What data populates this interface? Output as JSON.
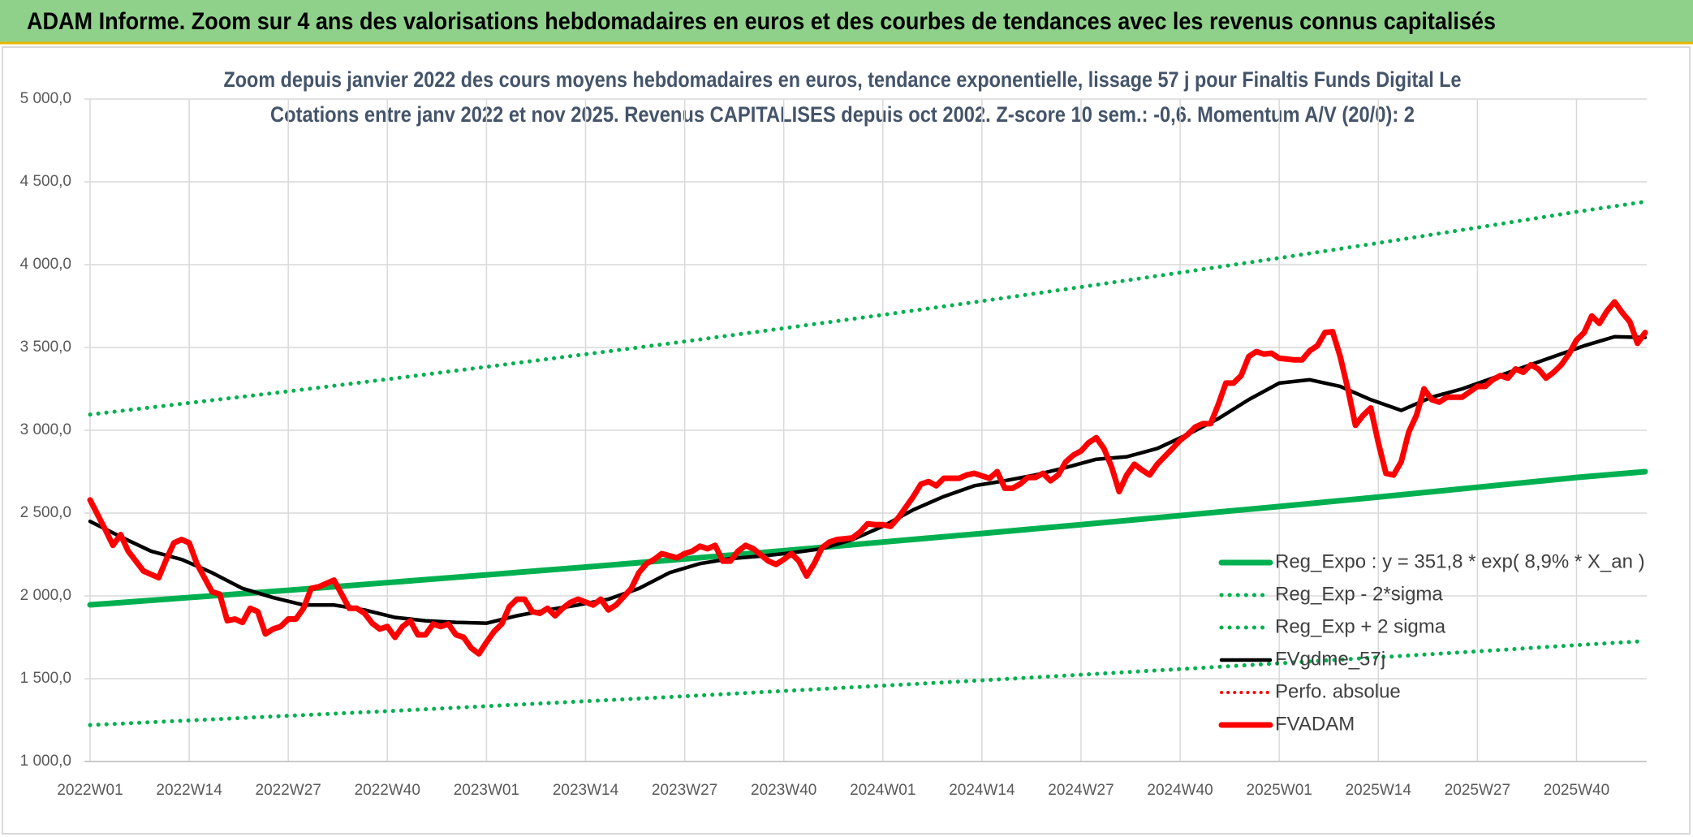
{
  "header": "ADAM Informe. Zoom sur 4 ans des valorisations hebdomadaires en euros et des courbes de tendances avec les revenus connus capitalisés",
  "chart_data": {
    "type": "line",
    "title": "Zoom depuis janvier 2022 des cours moyens hebdomadaires en euros, tendance exponentielle, lissage 57 j pour Finaltis Funds Digital Le",
    "subtitle": "Cotations entre janv 2022 et nov 2025. Revenus CAPITALISES depuis oct 2002. Z-score 10 sem.: -0,6. Momentum A/V (20/0): 2",
    "xlim": [
      0,
      204
    ],
    "xticks": [
      {
        "value": 0,
        "label": "2022W01"
      },
      {
        "value": 13,
        "label": "2022W14"
      },
      {
        "value": 26,
        "label": "2022W27"
      },
      {
        "value": 39,
        "label": "2022W40"
      },
      {
        "value": 52,
        "label": "2023W01"
      },
      {
        "value": 65,
        "label": "2023W14"
      },
      {
        "value": 78,
        "label": "2023W27"
      },
      {
        "value": 91,
        "label": "2023W40"
      },
      {
        "value": 104,
        "label": "2024W01"
      },
      {
        "value": 117,
        "label": "2024W14"
      },
      {
        "value": 130,
        "label": "2024W27"
      },
      {
        "value": 143,
        "label": "2024W40"
      },
      {
        "value": 156,
        "label": "2025W01"
      },
      {
        "value": 169,
        "label": "2025W14"
      },
      {
        "value": 182,
        "label": "2025W27"
      },
      {
        "value": 195,
        "label": "2025W40"
      }
    ],
    "ylim": [
      1000,
      5000
    ],
    "yticks": [
      {
        "value": 1000,
        "label": "1 000,0"
      },
      {
        "value": 1500,
        "label": "1 500,0"
      },
      {
        "value": 2000,
        "label": "2 000,0"
      },
      {
        "value": 2500,
        "label": "2 500,0"
      },
      {
        "value": 3000,
        "label": "3 000,0"
      },
      {
        "value": 3500,
        "label": "3 500,0"
      },
      {
        "value": 4000,
        "label": "4 000,0"
      },
      {
        "value": 4500,
        "label": "4 500,0"
      },
      {
        "value": 5000,
        "label": "5 000,0"
      }
    ],
    "grid": true,
    "legend": "right",
    "series": [
      {
        "name": "Reg_Expo : y = 351,8 * exp( 8,9% *  X_an )",
        "color": "#00b050",
        "line_style": "solid",
        "line_width": 7,
        "x": [
          0,
          13,
          26,
          39,
          52,
          65,
          78,
          91,
          104,
          117,
          130,
          143,
          156,
          169,
          182,
          195,
          204
        ],
        "values": [
          1946,
          1990,
          2034,
          2080,
          2127,
          2174,
          2223,
          2273,
          2325,
          2377,
          2430,
          2485,
          2540,
          2597,
          2656,
          2715,
          2750
        ]
      },
      {
        "name": "Reg_Exp - 2*sigma",
        "color": "#00b050",
        "line_style": "dotted",
        "line_width": 5,
        "x": [
          0,
          13,
          26,
          39,
          52,
          65,
          78,
          91,
          104,
          117,
          130,
          143,
          156,
          169,
          182,
          195,
          204
        ],
        "values": [
          1220,
          1248,
          1276,
          1304,
          1334,
          1364,
          1394,
          1426,
          1458,
          1490,
          1524,
          1558,
          1593,
          1629,
          1665,
          1703,
          1727
        ]
      },
      {
        "name": "Reg_Exp + 2 sigma",
        "color": "#00b050",
        "line_style": "dotted",
        "line_width": 5,
        "x": [
          0,
          13,
          26,
          39,
          52,
          65,
          78,
          91,
          104,
          117,
          130,
          143,
          156,
          169,
          182,
          195,
          204
        ],
        "values": [
          3095,
          3165,
          3235,
          3308,
          3383,
          3459,
          3536,
          3616,
          3697,
          3780,
          3865,
          3952,
          4040,
          4131,
          4224,
          4319,
          4380
        ]
      },
      {
        "name": "FVgdme_57j",
        "color": "#000000",
        "line_style": "solid",
        "line_width": 4.5,
        "x": [
          0,
          4,
          8,
          12,
          16,
          20,
          24,
          28,
          32,
          36,
          40,
          44,
          48,
          52,
          56,
          60,
          64,
          68,
          72,
          76,
          80,
          84,
          88,
          92,
          96,
          100,
          104,
          108,
          112,
          116,
          120,
          124,
          128,
          132,
          136,
          140,
          144,
          148,
          152,
          156,
          160,
          164,
          168,
          172,
          176,
          180,
          184,
          188,
          192,
          196,
          200,
          204
        ],
        "values": [
          2450,
          2357,
          2270,
          2220,
          2140,
          2045,
          1990,
          1945,
          1945,
          1915,
          1870,
          1850,
          1840,
          1835,
          1880,
          1915,
          1945,
          1980,
          2045,
          2140,
          2195,
          2225,
          2240,
          2260,
          2285,
          2340,
          2420,
          2520,
          2600,
          2665,
          2695,
          2730,
          2775,
          2825,
          2840,
          2890,
          2975,
          3070,
          3185,
          3285,
          3305,
          3265,
          3185,
          3120,
          3200,
          3250,
          3315,
          3380,
          3445,
          3510,
          3565,
          3560
        ]
      },
      {
        "name": "Perfo. absolue",
        "color": "#ff0000",
        "line_style": "dotted",
        "line_width": 4,
        "x": [],
        "values": []
      },
      {
        "name": "FVADAM",
        "color": "#ff0000",
        "line_style": "solid",
        "line_width": 7,
        "x": [
          0,
          2,
          3,
          4,
          5,
          6,
          7,
          9,
          10,
          11,
          12,
          13,
          14,
          15,
          16,
          17,
          18,
          19,
          20,
          21,
          22,
          23,
          24,
          25,
          26,
          27,
          28,
          29,
          30,
          32,
          33,
          34,
          35,
          36,
          37,
          38,
          39,
          40,
          41,
          42,
          43,
          44,
          45,
          46,
          47,
          48,
          49,
          50,
          51,
          52,
          53,
          54,
          55,
          56,
          57,
          58,
          59,
          60,
          61,
          62,
          63,
          64,
          66,
          67,
          68,
          69,
          70,
          71,
          72,
          73,
          74,
          75,
          77,
          78,
          79,
          80,
          81,
          82,
          83,
          84,
          85,
          86,
          87,
          89,
          90,
          91,
          92,
          93,
          94,
          95,
          96,
          97,
          98,
          100,
          101,
          102,
          103,
          104,
          105,
          106,
          107,
          108,
          109,
          110,
          111,
          112,
          113,
          114,
          115,
          116,
          118,
          119,
          120,
          121,
          122,
          123,
          124,
          125,
          126,
          127,
          128,
          129,
          130,
          131,
          132,
          133,
          134,
          135,
          136,
          137,
          138,
          139,
          140,
          142,
          143,
          144,
          145,
          146,
          147,
          148,
          149,
          150,
          151,
          152,
          153,
          154,
          155,
          156,
          158,
          159,
          160,
          161,
          162,
          163,
          164,
          165,
          166,
          167,
          168,
          169,
          170,
          171,
          172,
          173,
          174,
          175,
          176,
          177,
          178,
          179,
          180,
          182,
          183,
          184,
          185,
          186,
          187,
          188,
          189,
          190,
          191,
          192,
          193,
          194,
          195,
          196,
          197,
          198,
          199,
          200,
          201,
          202,
          203,
          204
        ],
        "values": [
          2579,
          2400,
          2305,
          2370,
          2270,
          2210,
          2150,
          2110,
          2220,
          2320,
          2340,
          2320,
          2195,
          2110,
          2025,
          2010,
          1850,
          1860,
          1840,
          1925,
          1905,
          1770,
          1800,
          1815,
          1860,
          1860,
          1925,
          2045,
          2055,
          2095,
          2010,
          1925,
          1925,
          1895,
          1835,
          1800,
          1815,
          1750,
          1815,
          1850,
          1765,
          1765,
          1830,
          1815,
          1830,
          1765,
          1750,
          1685,
          1650,
          1720,
          1785,
          1830,
          1935,
          1980,
          1980,
          1905,
          1895,
          1925,
          1880,
          1925,
          1960,
          1980,
          1945,
          1980,
          1915,
          1945,
          1995,
          2045,
          2140,
          2195,
          2220,
          2255,
          2230,
          2255,
          2270,
          2300,
          2285,
          2305,
          2210,
          2210,
          2270,
          2305,
          2285,
          2210,
          2190,
          2220,
          2255,
          2210,
          2120,
          2195,
          2290,
          2325,
          2340,
          2350,
          2385,
          2435,
          2430,
          2430,
          2420,
          2470,
          2535,
          2600,
          2675,
          2690,
          2665,
          2710,
          2710,
          2710,
          2730,
          2740,
          2710,
          2750,
          2650,
          2650,
          2675,
          2715,
          2715,
          2740,
          2695,
          2730,
          2810,
          2850,
          2875,
          2925,
          2955,
          2890,
          2780,
          2630,
          2730,
          2795,
          2760,
          2730,
          2795,
          2890,
          2940,
          2975,
          3020,
          3040,
          3040,
          3155,
          3285,
          3285,
          3330,
          3445,
          3475,
          3460,
          3465,
          3435,
          3425,
          3425,
          3480,
          3510,
          3590,
          3595,
          3445,
          3250,
          3030,
          3090,
          3135,
          2925,
          2740,
          2730,
          2810,
          2990,
          3090,
          3250,
          3185,
          3170,
          3200,
          3200,
          3200,
          3265,
          3265,
          3305,
          3330,
          3315,
          3370,
          3350,
          3395,
          3370,
          3315,
          3350,
          3395,
          3460,
          3545,
          3590,
          3690,
          3645,
          3720,
          3775,
          3710,
          3655,
          3525,
          3590
        ]
      }
    ]
  }
}
